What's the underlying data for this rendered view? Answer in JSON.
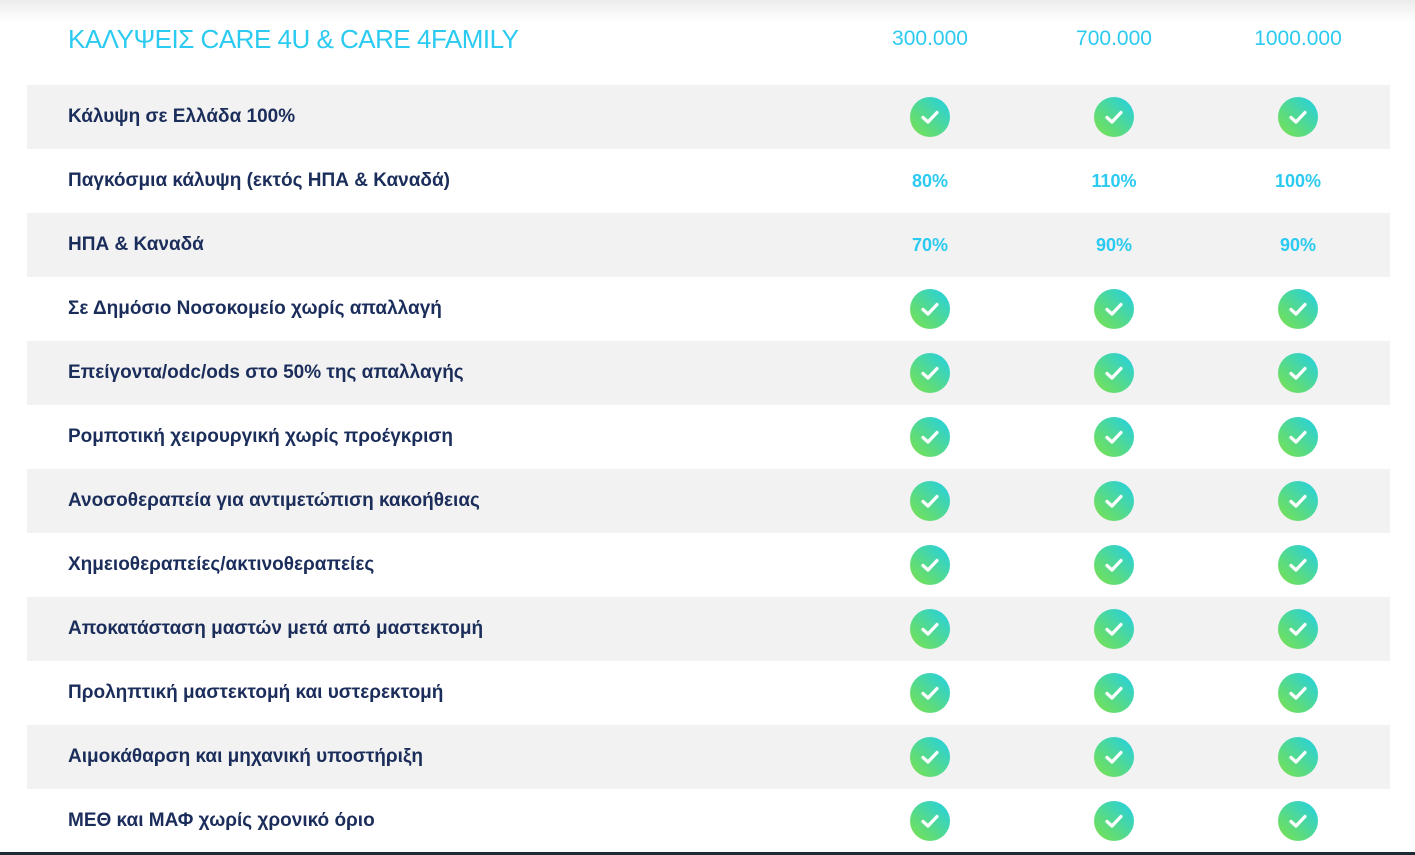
{
  "header": {
    "title": "ΚΑΛΥΨΕΙΣ CARE 4U & CARE 4FAMILY",
    "columns": [
      "300.000",
      "700.000",
      "1000.000"
    ]
  },
  "colors": {
    "accent": "#2bcaf0",
    "text": "#1b2d5a",
    "check_from": "#22cfe8",
    "check_to": "#7de04a"
  },
  "rows": [
    {
      "label": "Κάλυψη σε Ελλάδα 100%",
      "values": [
        "check",
        "check",
        "check"
      ]
    },
    {
      "label": "Παγκόσμια κάλυψη (εκτός ΗΠΑ & Καναδά)",
      "values": [
        "80%",
        "110%",
        "100%"
      ]
    },
    {
      "label": "ΗΠΑ & Καναδά",
      "values": [
        "70%",
        "90%",
        "90%"
      ]
    },
    {
      "label": "Σε Δημόσιο Νοσοκομείο χωρίς απαλλαγή",
      "values": [
        "check",
        "check",
        "check"
      ]
    },
    {
      "label": "Επείγοντα/odc/ods στο 50% της απαλλαγής",
      "values": [
        "check",
        "check",
        "check"
      ]
    },
    {
      "label": "Ρομποτική χειρουργική χωρίς προέγκριση",
      "values": [
        "check",
        "check",
        "check"
      ]
    },
    {
      "label": "Ανοσοθεραπεία για αντιμετώπιση κακοήθειας",
      "values": [
        "check",
        "check",
        "check"
      ]
    },
    {
      "label": "Χημειοθεραπείες/ακτινοθεραπείες",
      "values": [
        "check",
        "check",
        "check"
      ]
    },
    {
      "label": "Αποκατάσταση μαστών μετά από μαστεκτομή",
      "values": [
        "check",
        "check",
        "check"
      ]
    },
    {
      "label": "Προληπτική μαστεκτομή και υστερεκτομή",
      "values": [
        "check",
        "check",
        "check"
      ]
    },
    {
      "label": "Αιμοκάθαρση και μηχανική υποστήριξη",
      "values": [
        "check",
        "check",
        "check"
      ]
    },
    {
      "label": "ΜΕΘ και ΜΑΦ χωρίς χρονικό όριο",
      "values": [
        "check",
        "check",
        "check"
      ]
    }
  ]
}
